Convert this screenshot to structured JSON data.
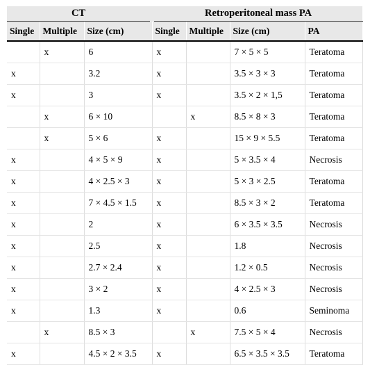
{
  "table": {
    "groups": [
      "CT",
      "Retroperitoneal mass PA"
    ],
    "columns": [
      "Single",
      "Multiple",
      "Size (cm)",
      "Single",
      "Multiple",
      "Size (cm)",
      "PA"
    ],
    "rows": [
      [
        null,
        "x",
        "6",
        "x",
        null,
        "7 × 5 × 5",
        "Teratoma"
      ],
      [
        "x",
        null,
        "3.2",
        "x",
        null,
        "3.5 × 3 × 3",
        "Teratoma"
      ],
      [
        "x",
        null,
        "3",
        "x",
        null,
        "3.5 × 2 × 1,5",
        "Teratoma"
      ],
      [
        null,
        "x",
        "6 × 10",
        null,
        "x",
        "8.5 × 8 × 3",
        "Teratoma"
      ],
      [
        null,
        "x",
        "5 × 6",
        "x",
        null,
        "15 × 9 × 5.5",
        "Teratoma"
      ],
      [
        "x",
        null,
        "4 × 5 × 9",
        "x",
        null,
        "5 × 3.5 × 4",
        "Necrosis"
      ],
      [
        "x",
        null,
        "4 × 2.5 × 3",
        "x",
        null,
        "5 × 3 × 2.5",
        "Teratoma"
      ],
      [
        "x",
        null,
        "7 × 4.5 × 1.5",
        "x",
        null,
        "8.5 × 3 × 2",
        "Teratoma"
      ],
      [
        "x",
        null,
        "2",
        "x",
        null,
        "6 × 3.5 × 3.5",
        "Necrosis"
      ],
      [
        "x",
        null,
        "2.5",
        "x",
        null,
        "1.8",
        "Necrosis"
      ],
      [
        "x",
        null,
        "2.7 × 2.4",
        "x",
        null,
        "1.2 × 0.5",
        "Necrosis"
      ],
      [
        "x",
        null,
        "3 × 2",
        "x",
        null,
        "4 × 2.5 × 3",
        "Necrosis"
      ],
      [
        "x",
        null,
        "1.3",
        "x",
        null,
        "0.6",
        "Seminoma"
      ],
      [
        null,
        "x",
        "8.5 × 3",
        null,
        "x",
        "7.5 × 5 × 4",
        "Necrosis"
      ],
      [
        "x",
        null,
        "4.5 × 2 × 3.5",
        "x",
        null,
        "6.5 × 3.5 × 3.5",
        "Teratoma"
      ]
    ]
  }
}
